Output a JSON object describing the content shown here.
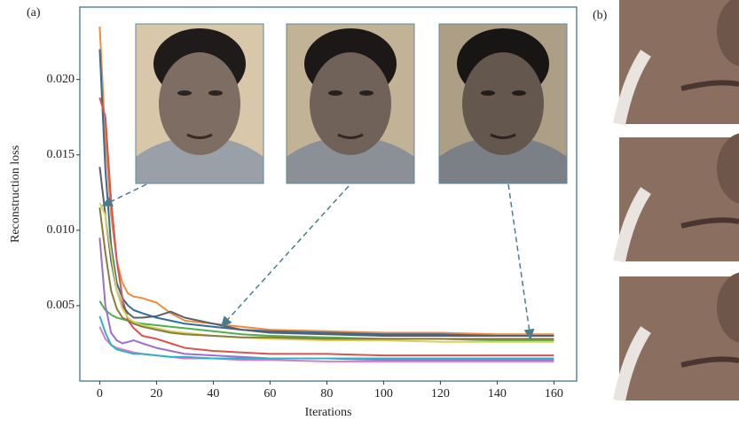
{
  "chart_data": {
    "type": "line",
    "panel_labels": [
      "(a)",
      "(b)"
    ],
    "xlabel": "Iterations",
    "ylabel": "Reconstruction loss",
    "x": [
      0,
      2,
      4,
      6,
      8,
      10,
      12,
      15,
      20,
      25,
      30,
      40,
      50,
      60,
      80,
      100,
      120,
      140,
      160
    ],
    "xlim": [
      -7,
      168
    ],
    "xticks": [
      0,
      20,
      40,
      60,
      80,
      100,
      120,
      140,
      160
    ],
    "ylim": [
      0,
      0.0248
    ],
    "yticks": [
      0.005,
      {
        "value": 0.01,
        "label": "0.010"
      },
      0.015,
      {
        "value": 0.02,
        "label": "0.020"
      }
    ],
    "grid": false,
    "series": [
      {
        "color": "#f08a3c",
        "values": [
          0.0235,
          0.016,
          0.011,
          0.008,
          0.0065,
          0.0058,
          0.0056,
          0.0055,
          0.0052,
          0.0045,
          0.004,
          0.0038,
          0.0036,
          0.0034,
          0.0033,
          0.0032,
          0.0032,
          0.0031,
          0.0031
        ]
      },
      {
        "color": "#2f6e9e",
        "values": [
          0.022,
          0.014,
          0.009,
          0.0065,
          0.0055,
          0.005,
          0.0047,
          0.0045,
          0.0042,
          0.004,
          0.0038,
          0.0036,
          0.0034,
          0.0033,
          0.0032,
          0.0031,
          0.0031,
          0.003,
          0.003
        ]
      },
      {
        "color": "#d9534f",
        "values": [
          0.0188,
          0.0175,
          0.012,
          0.008,
          0.0055,
          0.004,
          0.0035,
          0.003,
          0.0028,
          0.0025,
          0.0022,
          0.002,
          0.0019,
          0.0018,
          0.0018,
          0.0017,
          0.0017,
          0.0017,
          0.0017
        ]
      },
      {
        "color": "#5b5f6b",
        "values": [
          0.0142,
          0.011,
          0.008,
          0.006,
          0.005,
          0.0045,
          0.0042,
          0.0042,
          0.0043,
          0.0046,
          0.0042,
          0.0038,
          0.0034,
          0.0032,
          0.0031,
          0.003,
          0.003,
          0.003,
          0.003
        ]
      },
      {
        "color": "#4caf50",
        "values": [
          0.0053,
          0.0047,
          0.0044,
          0.0042,
          0.0041,
          0.004,
          0.0039,
          0.0038,
          0.0037,
          0.0036,
          0.0035,
          0.0033,
          0.0031,
          0.003,
          0.0029,
          0.0028,
          0.0028,
          0.0027,
          0.0027
        ]
      },
      {
        "color": "#d4d45a",
        "values": [
          0.0118,
          0.011,
          0.0085,
          0.006,
          0.0048,
          0.0042,
          0.0039,
          0.0037,
          0.0035,
          0.0033,
          0.0032,
          0.003,
          0.0029,
          0.0028,
          0.0027,
          0.0027,
          0.0026,
          0.0026,
          0.0026
        ]
      },
      {
        "color": "#9b6fd0",
        "values": [
          0.0095,
          0.005,
          0.0032,
          0.0027,
          0.0025,
          0.0026,
          0.0027,
          0.0025,
          0.0022,
          0.002,
          0.0018,
          0.0017,
          0.0016,
          0.0015,
          0.0015,
          0.0014,
          0.0014,
          0.0014,
          0.0014
        ]
      },
      {
        "color": "#e377c2",
        "values": [
          0.0036,
          0.0028,
          0.0024,
          0.0022,
          0.0021,
          0.002,
          0.0019,
          0.0018,
          0.0017,
          0.0016,
          0.0015,
          0.0015,
          0.0014,
          0.0014,
          0.0013,
          0.0013,
          0.0013,
          0.0013,
          0.0013
        ]
      },
      {
        "color": "#2bb3c8",
        "values": [
          0.0043,
          0.0032,
          0.0024,
          0.0021,
          0.002,
          0.0019,
          0.0018,
          0.0018,
          0.0017,
          0.0016,
          0.0016,
          0.0015,
          0.0015,
          0.0015,
          0.0015,
          0.0015,
          0.0015,
          0.0015,
          0.0015
        ]
      },
      {
        "color": "#8c7a3c",
        "values": [
          0.0115,
          0.0085,
          0.006,
          0.0048,
          0.0042,
          0.004,
          0.0038,
          0.0036,
          0.0034,
          0.0032,
          0.0031,
          0.003,
          0.0029,
          0.0029,
          0.0028,
          0.0028,
          0.0028,
          0.0028,
          0.0028
        ]
      }
    ]
  }
}
